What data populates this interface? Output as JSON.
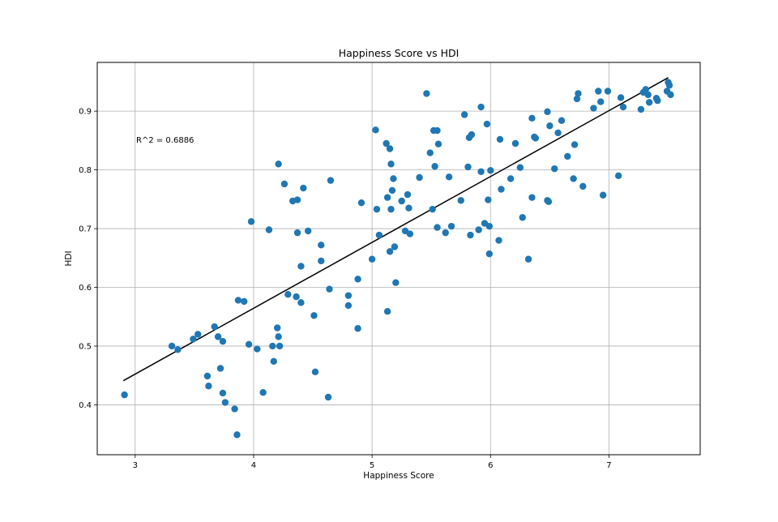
{
  "chart_data": {
    "type": "scatter",
    "title": "Happiness Score vs HDI",
    "xlabel": "Happiness Score",
    "ylabel": "HDI",
    "xlim": [
      2.68,
      7.77
    ],
    "ylim": [
      0.315,
      0.983
    ],
    "xticks": [
      3,
      4,
      5,
      6,
      7
    ],
    "yticks": [
      0.4,
      0.5,
      0.6,
      0.7,
      0.8,
      0.9
    ],
    "grid": true,
    "legend": "none",
    "annotation": "R^2 = 0.6886",
    "point_color": "#1f77b4",
    "line_color": "#000000",
    "regression_line": {
      "x": [
        2.9,
        7.5
      ],
      "y": [
        0.441,
        0.957
      ]
    },
    "series": [
      {
        "points": [
          [
            2.91,
            0.417
          ],
          [
            3.31,
            0.5
          ],
          [
            3.36,
            0.494
          ],
          [
            3.49,
            0.512
          ],
          [
            3.53,
            0.52
          ],
          [
            3.61,
            0.449
          ],
          [
            3.62,
            0.432
          ],
          [
            3.67,
            0.533
          ],
          [
            3.7,
            0.516
          ],
          [
            3.72,
            0.462
          ],
          [
            3.74,
            0.42
          ],
          [
            3.74,
            0.508
          ],
          [
            3.76,
            0.404
          ],
          [
            3.84,
            0.393
          ],
          [
            3.86,
            0.349
          ],
          [
            3.87,
            0.578
          ],
          [
            3.92,
            0.576
          ],
          [
            3.96,
            0.503
          ],
          [
            3.98,
            0.712
          ],
          [
            4.03,
            0.495
          ],
          [
            4.08,
            0.421
          ],
          [
            4.13,
            0.698
          ],
          [
            4.16,
            0.5
          ],
          [
            4.17,
            0.474
          ],
          [
            4.2,
            0.531
          ],
          [
            4.21,
            0.516
          ],
          [
            4.21,
            0.81
          ],
          [
            4.22,
            0.5
          ],
          [
            4.26,
            0.776
          ],
          [
            4.29,
            0.588
          ],
          [
            4.33,
            0.747
          ],
          [
            4.36,
            0.584
          ],
          [
            4.37,
            0.749
          ],
          [
            4.37,
            0.693
          ],
          [
            4.4,
            0.574
          ],
          [
            4.4,
            0.636
          ],
          [
            4.42,
            0.769
          ],
          [
            4.46,
            0.696
          ],
          [
            4.51,
            0.552
          ],
          [
            4.52,
            0.456
          ],
          [
            4.57,
            0.672
          ],
          [
            4.57,
            0.645
          ],
          [
            4.63,
            0.413
          ],
          [
            4.64,
            0.597
          ],
          [
            4.65,
            0.782
          ],
          [
            4.8,
            0.586
          ],
          [
            4.8,
            0.569
          ],
          [
            4.88,
            0.614
          ],
          [
            4.88,
            0.53
          ],
          [
            4.91,
            0.744
          ],
          [
            5.0,
            0.648
          ],
          [
            5.03,
            0.868
          ],
          [
            5.04,
            0.733
          ],
          [
            5.06,
            0.689
          ],
          [
            5.12,
            0.845
          ],
          [
            5.13,
            0.559
          ],
          [
            5.13,
            0.753
          ],
          [
            5.15,
            0.836
          ],
          [
            5.15,
            0.661
          ],
          [
            5.16,
            0.733
          ],
          [
            5.16,
            0.81
          ],
          [
            5.17,
            0.765
          ],
          [
            5.18,
            0.785
          ],
          [
            5.19,
            0.669
          ],
          [
            5.2,
            0.608
          ],
          [
            5.25,
            0.747
          ],
          [
            5.28,
            0.696
          ],
          [
            5.3,
            0.758
          ],
          [
            5.31,
            0.735
          ],
          [
            5.32,
            0.691
          ],
          [
            5.4,
            0.787
          ],
          [
            5.46,
            0.93
          ],
          [
            5.49,
            0.829
          ],
          [
            5.51,
            0.733
          ],
          [
            5.52,
            0.867
          ],
          [
            5.53,
            0.806
          ],
          [
            5.55,
            0.867
          ],
          [
            5.55,
            0.702
          ],
          [
            5.56,
            0.844
          ],
          [
            5.62,
            0.693
          ],
          [
            5.65,
            0.788
          ],
          [
            5.67,
            0.704
          ],
          [
            5.75,
            0.748
          ],
          [
            5.78,
            0.894
          ],
          [
            5.81,
            0.805
          ],
          [
            5.82,
            0.855
          ],
          [
            5.83,
            0.689
          ],
          [
            5.84,
            0.86
          ],
          [
            5.9,
            0.698
          ],
          [
            5.92,
            0.907
          ],
          [
            5.92,
            0.797
          ],
          [
            5.95,
            0.709
          ],
          [
            5.97,
            0.878
          ],
          [
            5.98,
            0.749
          ],
          [
            5.99,
            0.657
          ],
          [
            5.99,
            0.704
          ],
          [
            6.0,
            0.799
          ],
          [
            6.07,
            0.68
          ],
          [
            6.08,
            0.852
          ],
          [
            6.09,
            0.767
          ],
          [
            6.17,
            0.785
          ],
          [
            6.21,
            0.845
          ],
          [
            6.25,
            0.804
          ],
          [
            6.27,
            0.719
          ],
          [
            6.32,
            0.648
          ],
          [
            6.35,
            0.888
          ],
          [
            6.35,
            0.753
          ],
          [
            6.37,
            0.856
          ],
          [
            6.38,
            0.854
          ],
          [
            6.48,
            0.899
          ],
          [
            6.48,
            0.748
          ],
          [
            6.49,
            0.746
          ],
          [
            6.5,
            0.875
          ],
          [
            6.54,
            0.802
          ],
          [
            6.57,
            0.863
          ],
          [
            6.6,
            0.884
          ],
          [
            6.65,
            0.823
          ],
          [
            6.7,
            0.785
          ],
          [
            6.71,
            0.843
          ],
          [
            6.73,
            0.921
          ],
          [
            6.74,
            0.93
          ],
          [
            6.78,
            0.772
          ],
          [
            6.87,
            0.905
          ],
          [
            6.91,
            0.934
          ],
          [
            6.93,
            0.916
          ],
          [
            6.95,
            0.757
          ],
          [
            6.99,
            0.934
          ],
          [
            7.08,
            0.79
          ],
          [
            7.1,
            0.923
          ],
          [
            7.12,
            0.907
          ],
          [
            7.27,
            0.903
          ],
          [
            7.29,
            0.932
          ],
          [
            7.31,
            0.937
          ],
          [
            7.33,
            0.928
          ],
          [
            7.34,
            0.915
          ],
          [
            7.4,
            0.922
          ],
          [
            7.41,
            0.918
          ],
          [
            7.49,
            0.934
          ],
          [
            7.5,
            0.949
          ],
          [
            7.51,
            0.944
          ],
          [
            7.52,
            0.928
          ]
        ]
      }
    ]
  }
}
